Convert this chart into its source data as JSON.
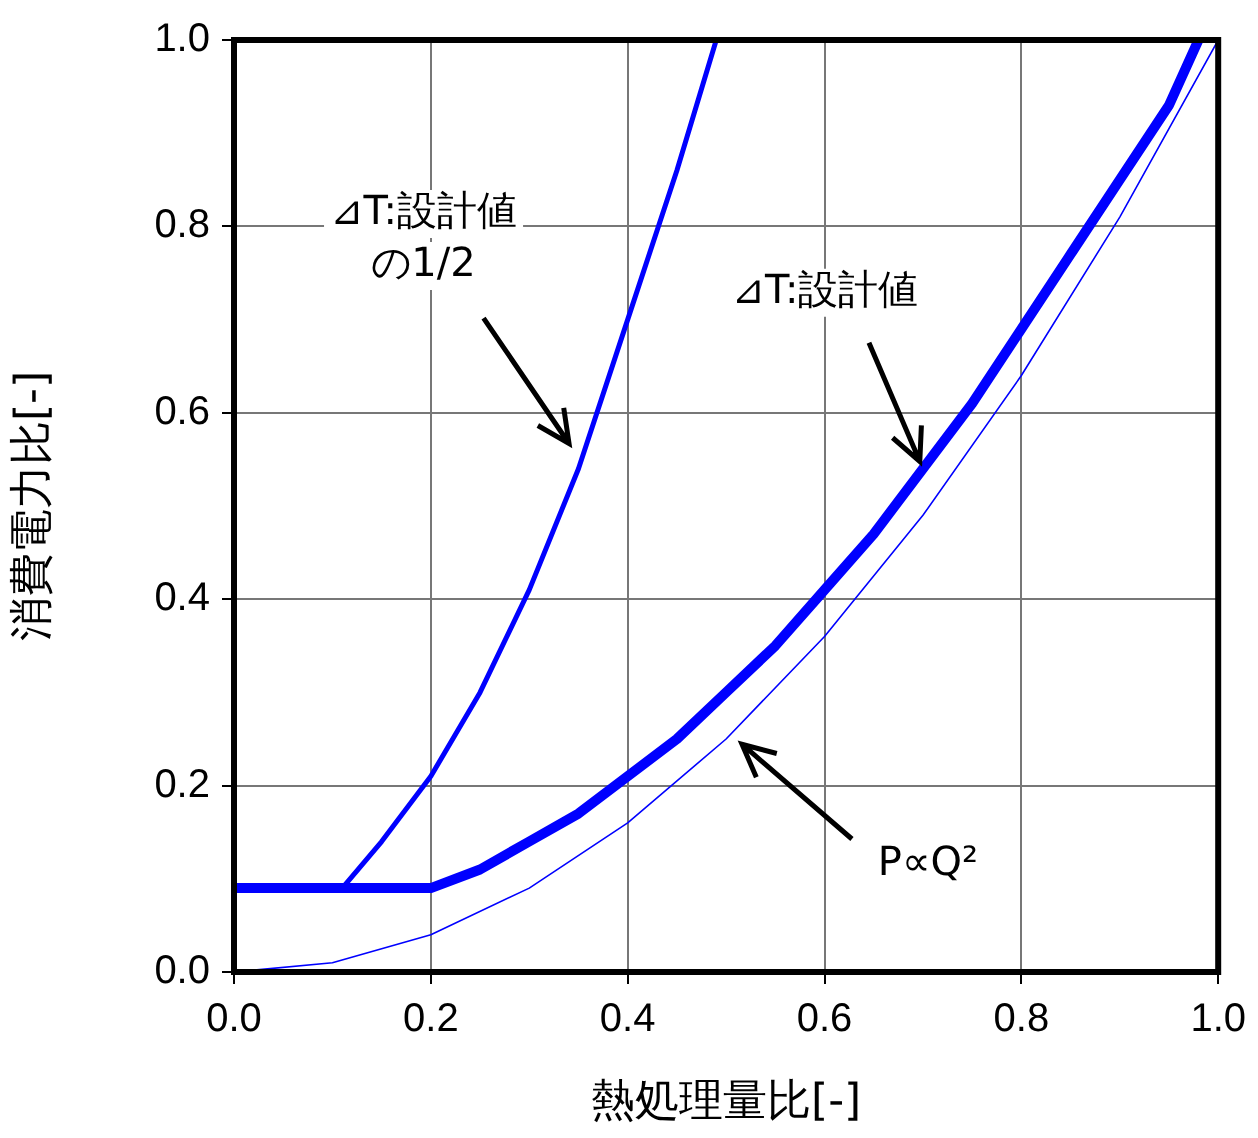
{
  "chart_data": {
    "type": "line",
    "xlabel": "熱処理量比[-]",
    "ylabel": "消費電力比[-]",
    "xlim": [
      0,
      1
    ],
    "ylim": [
      0,
      1
    ],
    "xticks": [
      {
        "value": 0,
        "label": "0.0"
      },
      {
        "value": 0.2,
        "label": "0.2"
      },
      {
        "value": 0.4,
        "label": "0.4"
      },
      {
        "value": 0.6,
        "label": "0.6"
      },
      {
        "value": 0.8,
        "label": "0.8"
      },
      {
        "value": 1,
        "label": "1.0"
      }
    ],
    "yticks": [
      {
        "value": 0,
        "label": "0.0"
      },
      {
        "value": 0.2,
        "label": "0.2"
      },
      {
        "value": 0.4,
        "label": "0.4"
      },
      {
        "value": 0.6,
        "label": "0.6"
      },
      {
        "value": 0.8,
        "label": "0.8"
      },
      {
        "value": 1,
        "label": "1.0"
      }
    ],
    "grid": true,
    "legend": false,
    "marker": "none",
    "series": [
      {
        "color": "#0000ff",
        "x": [
          0,
          0.11,
          0.15,
          0.2,
          0.25,
          0.3,
          0.35,
          0.4,
          0.45,
          0.49
        ],
        "values": [
          0.09,
          0.09,
          0.14,
          0.21,
          0.3,
          0.41,
          0.54,
          0.7,
          0.86,
          1.0
        ]
      },
      {
        "color": "#0000ff",
        "x": [
          0,
          0.2,
          0.25,
          0.3,
          0.35,
          0.4,
          0.45,
          0.5,
          0.55,
          0.6,
          0.65,
          0.7,
          0.75,
          0.8,
          0.85,
          0.9,
          0.95,
          0.98
        ],
        "values": [
          0.09,
          0.09,
          0.11,
          0.14,
          0.17,
          0.21,
          0.25,
          0.3,
          0.35,
          0.41,
          0.47,
          0.54,
          0.61,
          0.69,
          0.77,
          0.85,
          0.93,
          1.0
        ]
      },
      {
        "color": "#0000ff",
        "x": [
          0,
          0.1,
          0.2,
          0.3,
          0.4,
          0.5,
          0.6,
          0.7,
          0.8,
          0.9,
          1.0
        ],
        "values": [
          0,
          0.01,
          0.04,
          0.09,
          0.16,
          0.25,
          0.36,
          0.49,
          0.64,
          0.81,
          1.0
        ]
      }
    ],
    "annotations": [
      {
        "text": "⊿T:設計値の1/2",
        "x": 0.345,
        "y": 0.56
      },
      {
        "text": "⊿T:設計値",
        "x": 0.7,
        "y": 0.54
      },
      {
        "text": "P∝Q²",
        "x": 0.51,
        "y": 0.25
      }
    ]
  }
}
